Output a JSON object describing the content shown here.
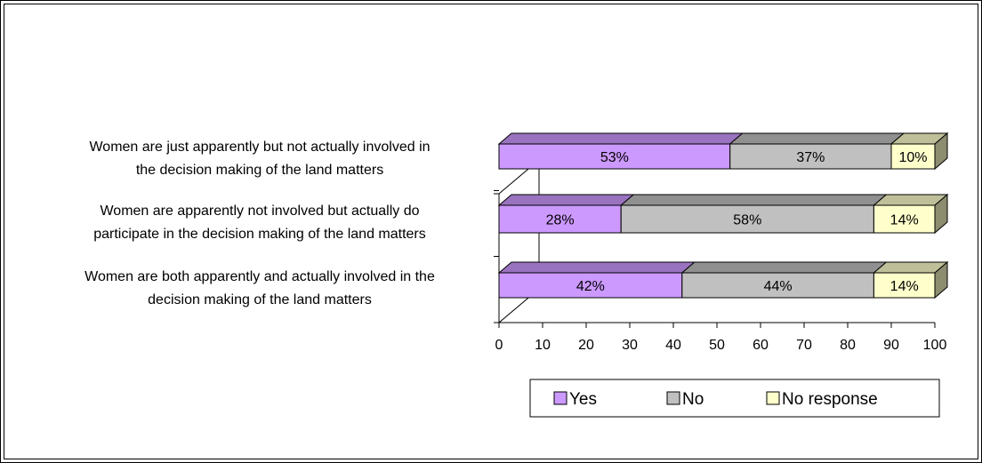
{
  "chart_data": {
    "type": "bar",
    "orientation": "horizontal",
    "stacked": true,
    "style3d": true,
    "categories": [
      [
        "Women are just apparently but not actually involved in",
        "the decision making of the land matters"
      ],
      [
        "Women are apparently not involved but actually do",
        "participate in the decision making of the land matters"
      ],
      [
        "Women are both apparently and actually involved in the",
        "decision making of the land matters"
      ]
    ],
    "series": [
      {
        "name": "Yes",
        "values": [
          53,
          28,
          42
        ],
        "labels": [
          "53%",
          "28%",
          "42%"
        ],
        "color": "#cc99ff"
      },
      {
        "name": "No",
        "values": [
          37,
          58,
          44
        ],
        "labels": [
          "37%",
          "58%",
          "44%"
        ],
        "color": "#c0c0c0"
      },
      {
        "name": "No response",
        "values": [
          10,
          14,
          14
        ],
        "labels": [
          "10%",
          "14%",
          "14%"
        ],
        "color": "#ffffcc"
      }
    ],
    "xlim": [
      0,
      100
    ],
    "xticks": [
      "0",
      "10",
      "20",
      "30",
      "40",
      "50",
      "60",
      "70",
      "80",
      "90",
      "100"
    ],
    "grid": false,
    "legend_position": "bottom"
  }
}
